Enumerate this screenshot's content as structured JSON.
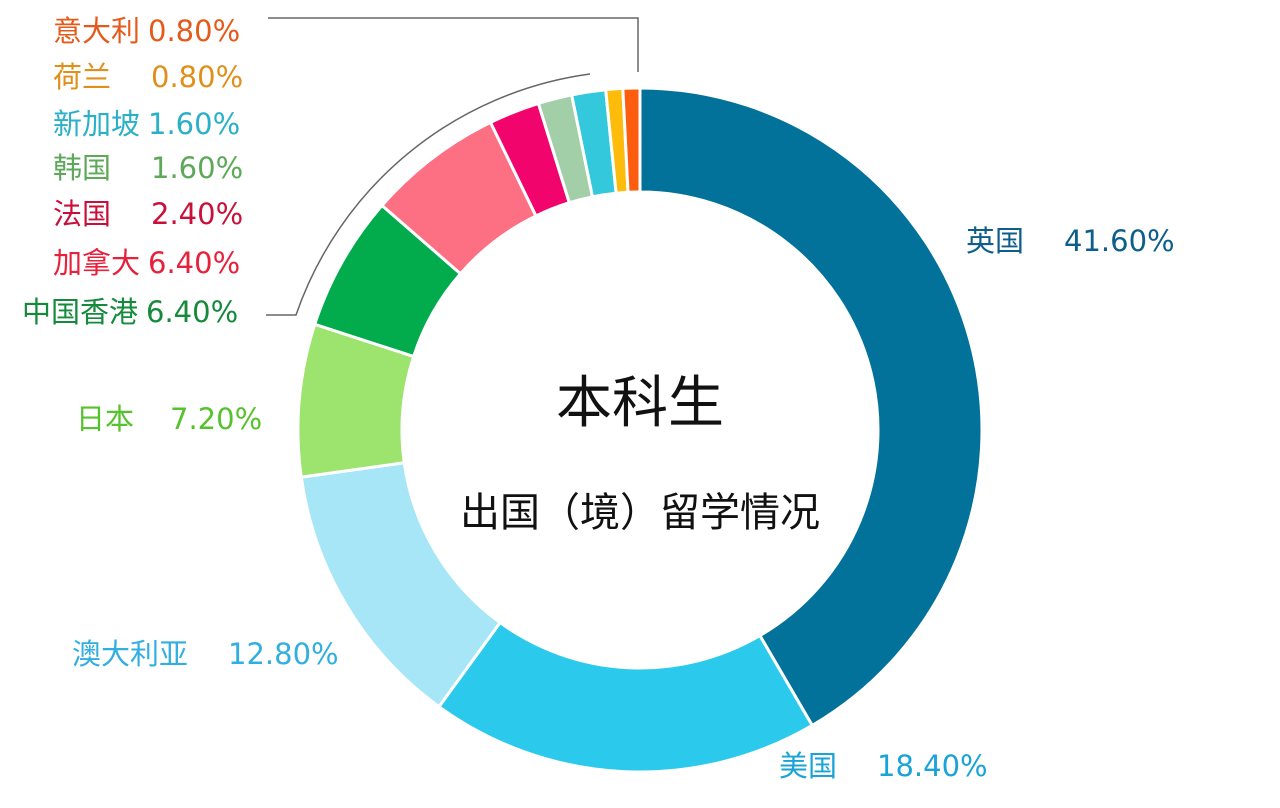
{
  "chart_data": {
    "type": "pie",
    "donut": true,
    "title": "本科生",
    "subtitle": "出国（境）留学情况",
    "slices": [
      {
        "label": "英国",
        "value": 41.6,
        "display": "41.60%",
        "color": "#02729a",
        "label_color": "#0d5e8a"
      },
      {
        "label": "美国",
        "value": 18.4,
        "display": "18.40%",
        "color": "#2bc9ec",
        "label_color": "#1aa3d6"
      },
      {
        "label": "澳大利亚",
        "value": 12.8,
        "display": "12.80%",
        "color": "#a6e6f6",
        "label_color": "#33aee0"
      },
      {
        "label": "日本",
        "value": 7.2,
        "display": "7.20%",
        "color": "#9ce46e",
        "label_color": "#56c22e"
      },
      {
        "label": "中国香港",
        "value": 6.4,
        "display": "6.40%",
        "color": "#02ab4c",
        "label_color": "#168a3c"
      },
      {
        "label": "加拿大",
        "value": 6.4,
        "display": "6.40%",
        "color": "#fd6f82",
        "label_color": "#e8203c"
      },
      {
        "label": "法国",
        "value": 2.4,
        "display": "2.40%",
        "color": "#f1056d",
        "label_color": "#c8103a"
      },
      {
        "label": "韩国",
        "value": 1.6,
        "display": "1.60%",
        "color": "#a3cfa8",
        "label_color": "#5ea85a"
      },
      {
        "label": "新加坡",
        "value": 1.6,
        "display": "1.60%",
        "color": "#33c8dc",
        "label_color": "#2ab0c8"
      },
      {
        "label": "荷兰",
        "value": 0.8,
        "display": "0.80%",
        "color": "#fdbb0b",
        "label_color": "#e0901a"
      },
      {
        "label": "意大利",
        "value": 0.8,
        "display": "0.80%",
        "color": "#fd5d0e",
        "label_color": "#e55a1a"
      }
    ],
    "legend_placement": "callout labels"
  }
}
